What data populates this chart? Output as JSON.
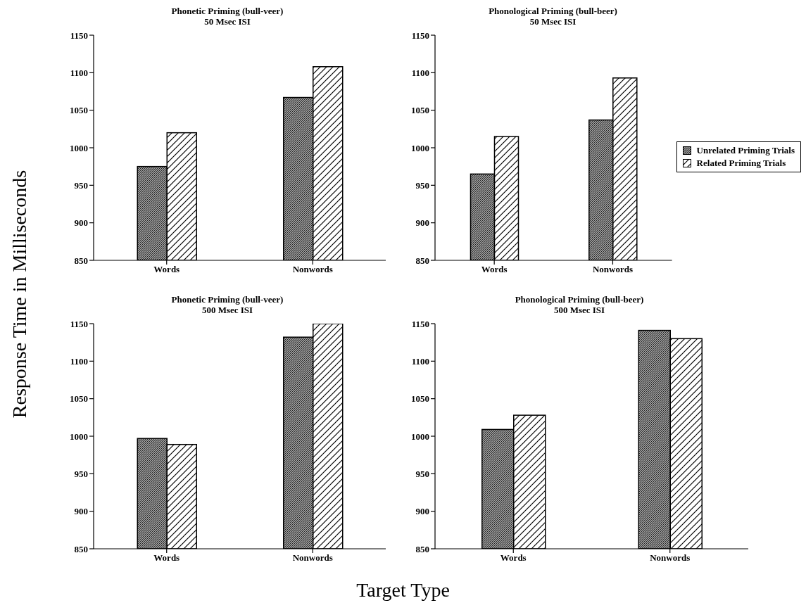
{
  "chart_data": [
    {
      "type": "bar",
      "title": "Phonetic Priming (bull-veer)",
      "subtitle": "50 Msec ISI",
      "ylabel": "Response Time in Milliseconds",
      "categories": [
        "Words",
        "Nonwords"
      ],
      "series": [
        {
          "color": "#9a9a9a",
          "values": [
            975,
            1067
          ]
        },
        {
          "color": "#ffffff",
          "values": [
            1020,
            1108
          ]
        }
      ],
      "ylim": [
        850,
        1150
      ],
      "yticks": [
        850,
        900,
        950,
        1000,
        1050,
        1100,
        1150
      ],
      "grid": false,
      "legend": false
    },
    {
      "type": "bar",
      "title": "Phonological Priming (bull-beer)",
      "subtitle": "50 Msec ISI",
      "categories": [
        "Words",
        "Nonwords"
      ],
      "series": [
        {
          "name": "Unrelated Priming Trials",
          "color": "#9a9a9a",
          "values": [
            965,
            1037
          ]
        },
        {
          "name": "Related Priming Trials",
          "color": "#ffffff",
          "values": [
            1015,
            1093
          ]
        }
      ],
      "ylim": [
        850,
        1150
      ],
      "yticks": [
        850,
        900,
        950,
        1000,
        1050,
        1100,
        1150
      ],
      "grid": false,
      "legend": "right"
    },
    {
      "type": "bar",
      "title": "Phonetic Priming (bull-veer)",
      "subtitle": "500 Msec ISI",
      "xlabel": "Target Type",
      "categories": [
        "Words",
        "Nonwords"
      ],
      "series": [
        {
          "color": "#9a9a9a",
          "values": [
            997,
            1132
          ]
        },
        {
          "color": "#ffffff",
          "values": [
            989,
            1150
          ]
        }
      ],
      "ylim": [
        850,
        1150
      ],
      "yticks": [
        850,
        900,
        950,
        1000,
        1050,
        1100,
        1150
      ],
      "grid": false,
      "legend": false
    },
    {
      "type": "bar",
      "title": "Phonological Priming (bull-beer)",
      "subtitle": "500 Msec ISI",
      "categories": [
        "Words",
        "Nonwords"
      ],
      "series": [
        {
          "color": "#9a9a9a",
          "values": [
            1009,
            1141
          ]
        },
        {
          "color": "#ffffff",
          "values": [
            1028,
            1130
          ]
        }
      ],
      "ylim": [
        850,
        1150
      ],
      "yticks": [
        850,
        900,
        950,
        1000,
        1050,
        1100,
        1150
      ],
      "grid": false,
      "legend": false
    }
  ]
}
